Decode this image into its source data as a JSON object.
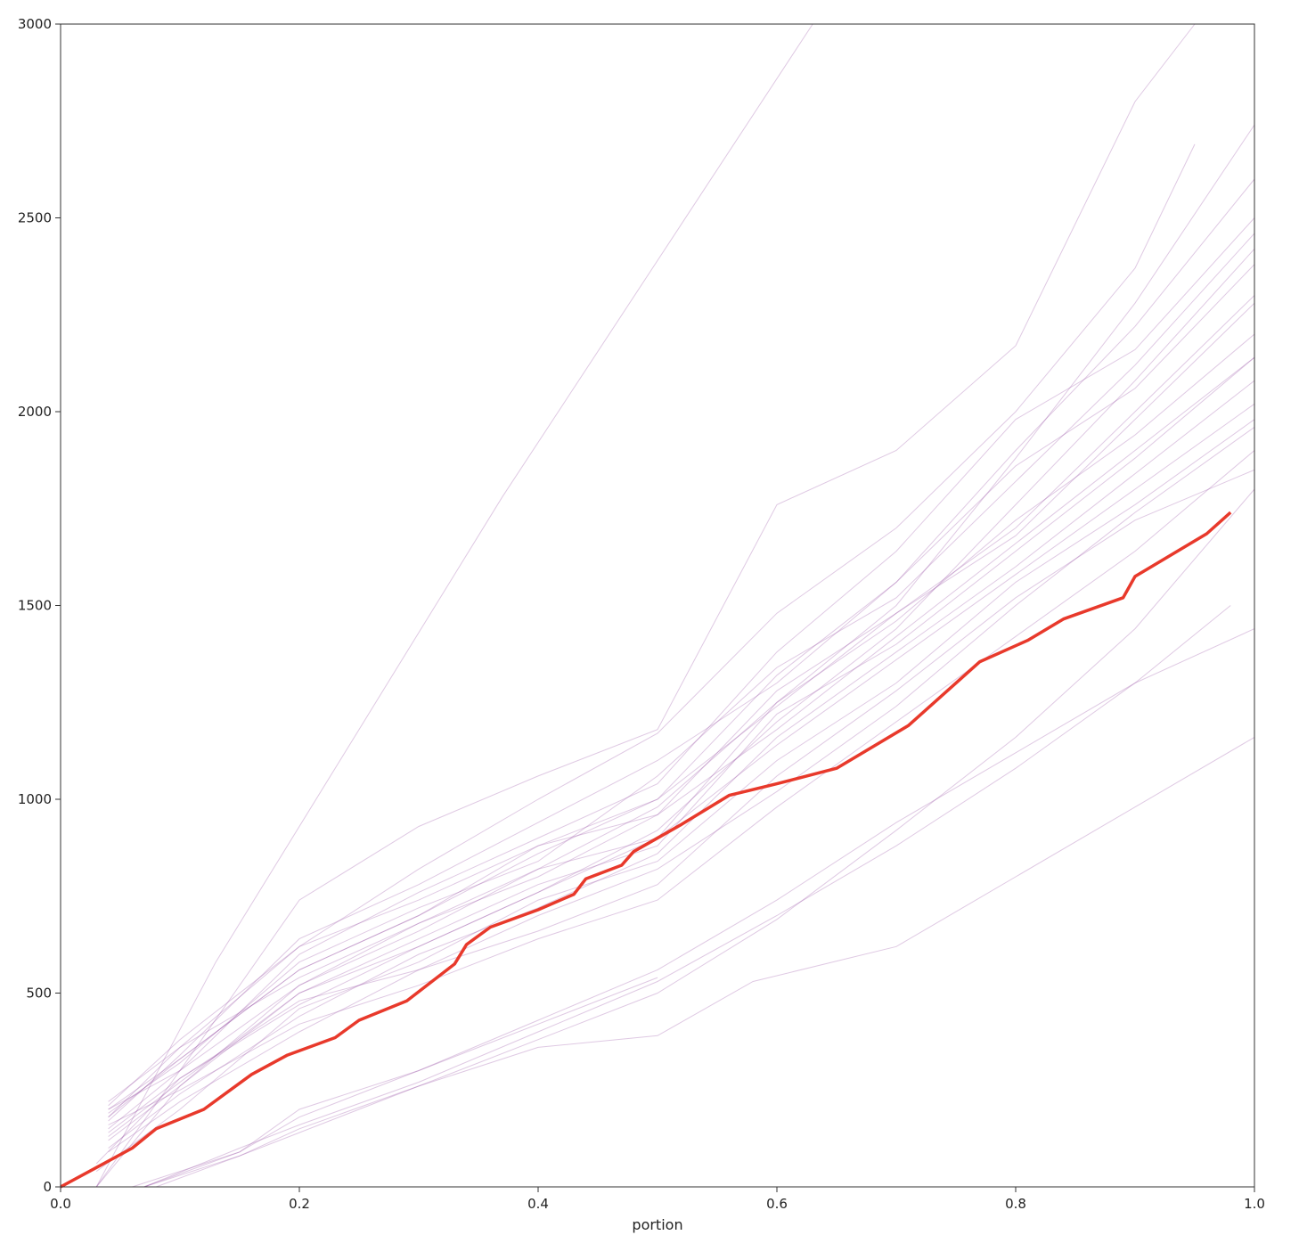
{
  "chart_data": {
    "type": "line",
    "title": "",
    "xlabel": "portion",
    "ylabel": "",
    "xlim": [
      0.0,
      1.0
    ],
    "ylim": [
      0,
      3000
    ],
    "grid": false,
    "legend": "none",
    "x_ticks": [
      "0.0",
      "0.2",
      "0.4",
      "0.6",
      "0.8",
      "1.0"
    ],
    "y_ticks": [
      "0",
      "500",
      "1000",
      "1500",
      "2000",
      "2500",
      "3000"
    ],
    "colors": {
      "highlight": "#e8392b",
      "background_series": "#8b3d9c",
      "axes": "#333333"
    },
    "highlight_series": {
      "x": [
        0.0,
        0.03,
        0.06,
        0.08,
        0.12,
        0.16,
        0.19,
        0.23,
        0.25,
        0.29,
        0.33,
        0.34,
        0.36,
        0.4,
        0.43,
        0.44,
        0.47,
        0.48,
        0.52,
        0.56,
        0.6,
        0.65,
        0.71,
        0.77,
        0.81,
        0.84,
        0.89,
        0.9,
        0.96,
        0.98
      ],
      "y": [
        0,
        50,
        100,
        150,
        200,
        290,
        340,
        385,
        430,
        480,
        575,
        625,
        670,
        715,
        755,
        795,
        830,
        865,
        935,
        1010,
        1040,
        1080,
        1190,
        1355,
        1410,
        1465,
        1520,
        1575,
        1685,
        1740
      ]
    },
    "background_series": [
      {
        "x": [
          0.03,
          0.13,
          0.25,
          0.37,
          0.5,
          0.63
        ],
        "y": [
          0,
          580,
          1180,
          1780,
          2390,
          3000
        ]
      },
      {
        "x": [
          0.03,
          0.1,
          0.2,
          0.3,
          0.4,
          0.5,
          0.6,
          0.7,
          0.8,
          0.9,
          0.95
        ],
        "y": [
          0,
          300,
          740,
          930,
          1060,
          1180,
          1760,
          1900,
          2170,
          2800,
          3000
        ]
      },
      {
        "x": [
          0.04,
          0.1,
          0.2,
          0.3,
          0.4,
          0.5,
          0.6,
          0.7,
          0.8,
          0.9,
          0.95
        ],
        "y": [
          180,
          360,
          620,
          820,
          1000,
          1170,
          1480,
          1700,
          2000,
          2370,
          2690
        ]
      },
      {
        "x": [
          0.03,
          0.1,
          0.2,
          0.3,
          0.4,
          0.5,
          0.6,
          0.7,
          0.8,
          0.9,
          1.0
        ],
        "y": [
          0,
          260,
          520,
          680,
          820,
          980,
          1250,
          1500,
          1880,
          2280,
          2740
        ]
      },
      {
        "x": [
          0.04,
          0.1,
          0.2,
          0.3,
          0.4,
          0.5,
          0.6,
          0.7,
          0.8,
          0.9,
          1.0
        ],
        "y": [
          200,
          330,
          560,
          700,
          880,
          1000,
          1320,
          1560,
          1900,
          2220,
          2600
        ]
      },
      {
        "x": [
          0.04,
          0.1,
          0.2,
          0.3,
          0.4,
          0.5,
          0.6,
          0.7,
          0.8,
          0.9,
          1.0
        ],
        "y": [
          150,
          300,
          600,
          760,
          900,
          1040,
          1380,
          1640,
          1980,
          2160,
          2500
        ]
      },
      {
        "x": [
          0.03,
          0.1,
          0.2,
          0.3,
          0.4,
          0.5,
          0.6,
          0.7,
          0.8,
          0.9,
          1.0
        ],
        "y": [
          60,
          280,
          470,
          620,
          760,
          920,
          1200,
          1440,
          1760,
          2080,
          2420
        ]
      },
      {
        "x": [
          0.04,
          0.1,
          0.2,
          0.3,
          0.4,
          0.5,
          0.6,
          0.7,
          0.8,
          0.9,
          1.0
        ],
        "y": [
          220,
          360,
          540,
          680,
          800,
          960,
          1280,
          1480,
          1700,
          2000,
          2300
        ]
      },
      {
        "x": [
          0.04,
          0.1,
          0.2,
          0.3,
          0.4,
          0.5,
          0.6,
          0.7,
          0.8,
          0.9,
          1.0
        ],
        "y": [
          120,
          260,
          500,
          640,
          780,
          880,
          1220,
          1400,
          1640,
          1880,
          2140
        ]
      },
      {
        "x": [
          0.04,
          0.1,
          0.2,
          0.3,
          0.4,
          0.5,
          0.6,
          0.7,
          0.8,
          0.9,
          1.0
        ],
        "y": [
          190,
          320,
          580,
          720,
          840,
          1060,
          1340,
          1520,
          1820,
          2120,
          2460
        ]
      },
      {
        "x": [
          0.04,
          0.1,
          0.2,
          0.3,
          0.4,
          0.5,
          0.6,
          0.7,
          0.8,
          0.9,
          1.0
        ],
        "y": [
          100,
          240,
          440,
          600,
          720,
          860,
          1160,
          1380,
          1600,
          1840,
          2080
        ]
      },
      {
        "x": [
          0.04,
          0.1,
          0.2,
          0.3,
          0.4,
          0.5,
          0.6,
          0.7,
          0.8,
          0.9,
          1.0
        ],
        "y": [
          200,
          300,
          520,
          660,
          820,
          900,
          1250,
          1460,
          1720,
          1940,
          2200
        ]
      },
      {
        "x": [
          0.03,
          0.1,
          0.2,
          0.3,
          0.4,
          0.5,
          0.6,
          0.7,
          0.8,
          0.9,
          1.0
        ],
        "y": [
          40,
          200,
          460,
          580,
          740,
          840,
          1100,
          1300,
          1560,
          1760,
          1980
        ]
      },
      {
        "x": [
          0.04,
          0.1,
          0.2,
          0.3,
          0.4,
          0.5,
          0.6,
          0.7,
          0.8,
          0.9,
          1.0
        ],
        "y": [
          170,
          340,
          640,
          780,
          940,
          1100,
          1300,
          1560,
          1860,
          2060,
          2380
        ]
      },
      {
        "x": [
          0.04,
          0.1,
          0.2,
          0.3,
          0.4,
          0.5,
          0.6,
          0.7,
          0.8,
          0.9,
          1.0
        ],
        "y": [
          140,
          280,
          480,
          560,
          700,
          820,
          1020,
          1240,
          1500,
          1740,
          1960
        ]
      },
      {
        "x": [
          0.04,
          0.1,
          0.2,
          0.3,
          0.4,
          0.5,
          0.6,
          0.7,
          0.8,
          0.9,
          1.0
        ],
        "y": [
          210,
          380,
          620,
          740,
          880,
          960,
          1180,
          1420,
          1660,
          1900,
          2140
        ]
      },
      {
        "x": [
          0.04,
          0.1,
          0.2,
          0.3,
          0.4,
          0.5,
          0.6,
          0.7,
          0.8,
          0.9,
          1.0
        ],
        "y": [
          160,
          250,
          420,
          520,
          640,
          740,
          980,
          1200,
          1420,
          1640,
          1900
        ]
      },
      {
        "x": [
          0.04,
          0.1,
          0.2,
          0.3,
          0.4,
          0.5,
          0.6,
          0.7,
          0.8,
          0.9,
          1.0
        ],
        "y": [
          90,
          220,
          400,
          560,
          660,
          780,
          1060,
          1280,
          1520,
          1720,
          1850
        ]
      },
      {
        "x": [
          0.04,
          0.1,
          0.2,
          0.3,
          0.4,
          0.5,
          0.6,
          0.7,
          0.8,
          0.9,
          1.0
        ],
        "y": [
          180,
          330,
          560,
          700,
          860,
          1000,
          1240,
          1480,
          1680,
          1980,
          2280
        ]
      },
      {
        "x": [
          0.04,
          0.1,
          0.2,
          0.3,
          0.4,
          0.5,
          0.6,
          0.7,
          0.8,
          0.9,
          1.0
        ],
        "y": [
          130,
          270,
          500,
          620,
          760,
          900,
          1140,
          1360,
          1580,
          1800,
          2020
        ]
      },
      {
        "x": [
          0.06,
          0.15,
          0.2,
          0.3,
          0.4,
          0.5,
          0.6,
          0.7,
          0.8,
          0.9,
          1.0
        ],
        "y": [
          0,
          90,
          200,
          300,
          430,
          560,
          740,
          940,
          1120,
          1300,
          1440
        ]
      },
      {
        "x": [
          0.07,
          0.15,
          0.2,
          0.3,
          0.4,
          0.5,
          0.6,
          0.7,
          0.8,
          0.9,
          0.98
        ],
        "y": [
          0,
          100,
          160,
          270,
          400,
          530,
          700,
          880,
          1080,
          1300,
          1500
        ]
      },
      {
        "x": [
          0.08,
          0.15,
          0.2,
          0.3,
          0.4,
          0.5,
          0.6,
          0.7,
          0.8,
          0.9,
          1.0
        ],
        "y": [
          0,
          80,
          140,
          260,
          380,
          500,
          690,
          920,
          1160,
          1440,
          1800
        ]
      },
      {
        "x": [
          0.07,
          0.15,
          0.2,
          0.3,
          0.35,
          0.4,
          0.5
        ],
        "y": [
          0,
          90,
          180,
          300,
          360,
          420,
          540
        ]
      },
      {
        "x": [
          0.07,
          0.15,
          0.2,
          0.3,
          0.4,
          0.5,
          0.58,
          0.7,
          0.8,
          0.9,
          1.0
        ],
        "y": [
          0,
          80,
          150,
          260,
          360,
          390,
          530,
          620,
          800,
          980,
          1160
        ]
      }
    ]
  }
}
